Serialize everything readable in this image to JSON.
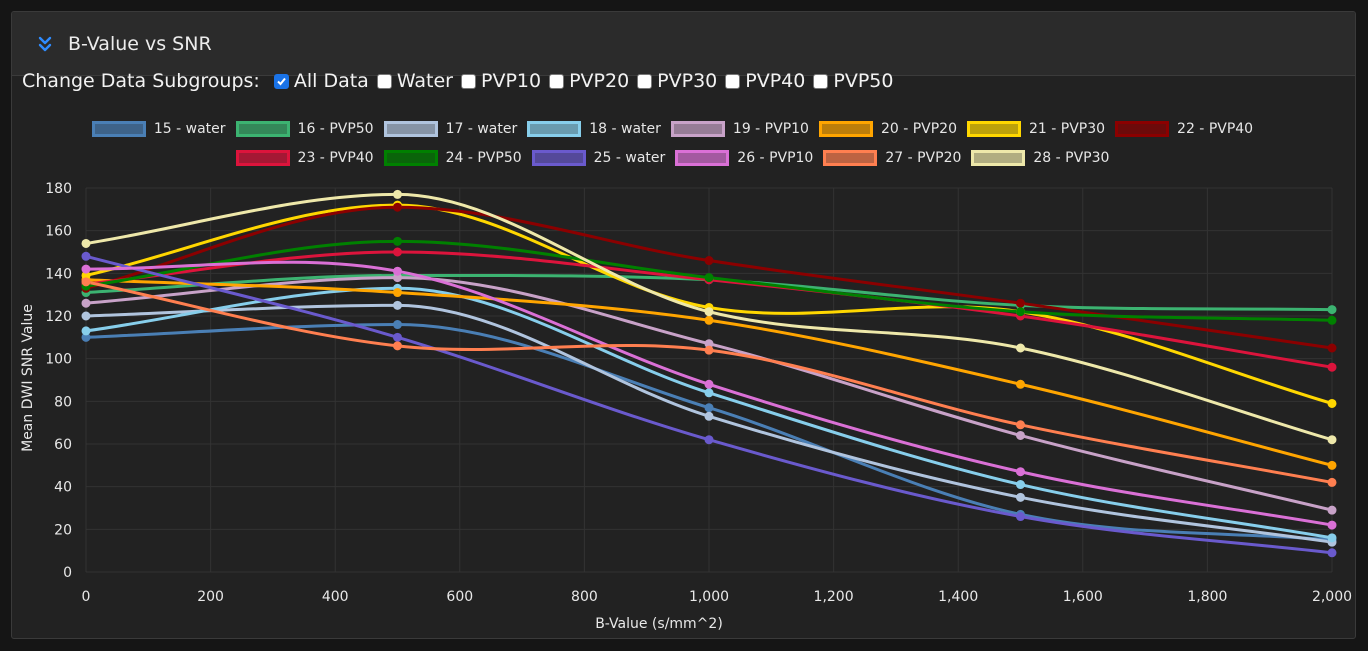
{
  "panel": {
    "title": "B-Value vs SNR",
    "collapse_icon": "chevrons-down-icon"
  },
  "filters": {
    "label": "Change Data Subgroups:",
    "options": [
      {
        "label": "All Data",
        "checked": true
      },
      {
        "label": "Water",
        "checked": false
      },
      {
        "label": "PVP10",
        "checked": false
      },
      {
        "label": "PVP20",
        "checked": false
      },
      {
        "label": "PVP30",
        "checked": false
      },
      {
        "label": "PVP40",
        "checked": false
      },
      {
        "label": "PVP50",
        "checked": false
      }
    ]
  },
  "chart_data": {
    "type": "line",
    "xlabel": "B-Value (s/mm^2)",
    "ylabel": "Mean DWI SNR Value",
    "xlim": [
      0,
      2000
    ],
    "ylim": [
      0,
      180
    ],
    "x_ticks": [
      0,
      200,
      400,
      600,
      800,
      1000,
      1200,
      1400,
      1600,
      1800,
      2000
    ],
    "x_tick_labels": [
      "0",
      "200",
      "400",
      "600",
      "800",
      "1,000",
      "1,200",
      "1,400",
      "1,600",
      "1,800",
      "2,000"
    ],
    "y_ticks": [
      0,
      20,
      40,
      60,
      80,
      100,
      120,
      140,
      160,
      180
    ],
    "y_tick_labels": [
      "0",
      "20",
      "40",
      "60",
      "80",
      "100",
      "120",
      "140",
      "160",
      "180"
    ],
    "grid": true,
    "legend_position": "top",
    "x": [
      0,
      500,
      1000,
      1500,
      2000
    ],
    "series": [
      {
        "name": "15 - water",
        "color": "#4a7fb5",
        "values": [
          110,
          116,
          77,
          27,
          15
        ]
      },
      {
        "name": "16 - PVP50",
        "color": "#3cb371",
        "values": [
          131,
          139,
          137,
          125,
          123
        ]
      },
      {
        "name": "17 - water",
        "color": "#b0c4de",
        "values": [
          120,
          125,
          73,
          35,
          14
        ]
      },
      {
        "name": "18 - water",
        "color": "#87ceeb",
        "values": [
          113,
          133,
          84,
          41,
          16
        ]
      },
      {
        "name": "19 - PVP10",
        "color": "#c8a2c8",
        "values": [
          126,
          138,
          107,
          64,
          29
        ]
      },
      {
        "name": "20 - PVP20",
        "color": "#ffa500",
        "values": [
          137,
          131,
          118,
          88,
          50
        ]
      },
      {
        "name": "21 - PVP30",
        "color": "#ffd700",
        "values": [
          139,
          172,
          124,
          122,
          79
        ]
      },
      {
        "name": "22 - PVP40",
        "color": "#8b0000",
        "values": [
          133,
          171,
          146,
          126,
          105
        ]
      },
      {
        "name": "23 - PVP40",
        "color": "#dc143c",
        "values": [
          135,
          150,
          137,
          120,
          96
        ]
      },
      {
        "name": "24 - PVP50",
        "color": "#008000",
        "values": [
          134,
          155,
          138,
          122,
          118
        ]
      },
      {
        "name": "25 - water",
        "color": "#6a5acd",
        "values": [
          148,
          110,
          62,
          26,
          9
        ]
      },
      {
        "name": "26 - PVP10",
        "color": "#da70d6",
        "values": [
          142,
          141,
          88,
          47,
          22
        ]
      },
      {
        "name": "27 - PVP20",
        "color": "#ff7f50",
        "values": [
          136,
          106,
          104,
          69,
          42
        ]
      },
      {
        "name": "28 - PVP30",
        "color": "#eee8aa",
        "values": [
          154,
          177,
          122,
          105,
          62
        ]
      }
    ]
  }
}
